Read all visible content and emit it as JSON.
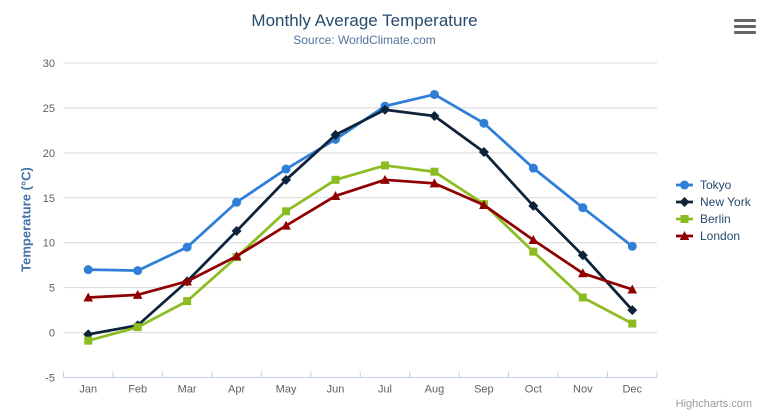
{
  "chart_data": {
    "type": "line",
    "title": "Monthly Average Temperature",
    "subtitle": "Source: WorldClimate.com",
    "xlabel": "",
    "ylabel": "Temperature (°C)",
    "categories": [
      "Jan",
      "Feb",
      "Mar",
      "Apr",
      "May",
      "Jun",
      "Jul",
      "Aug",
      "Sep",
      "Oct",
      "Nov",
      "Dec"
    ],
    "ylim": [
      -5,
      30
    ],
    "yticks": [
      -5,
      0,
      5,
      10,
      15,
      20,
      25,
      30
    ],
    "grid": true,
    "legend_position": "right",
    "series": [
      {
        "name": "Tokyo",
        "color": "#2f7ed8",
        "marker": "circle",
        "values": [
          7.0,
          6.9,
          9.5,
          14.5,
          18.2,
          21.5,
          25.2,
          26.5,
          23.3,
          18.3,
          13.9,
          9.6
        ]
      },
      {
        "name": "New York",
        "color": "#0d233a",
        "marker": "diamond",
        "values": [
          -0.2,
          0.8,
          5.7,
          11.3,
          17.0,
          22.0,
          24.8,
          24.1,
          20.1,
          14.1,
          8.6,
          2.5
        ]
      },
      {
        "name": "Berlin",
        "color": "#8bbc21",
        "marker": "square",
        "values": [
          -0.9,
          0.6,
          3.5,
          8.4,
          13.5,
          17.0,
          18.6,
          17.9,
          14.3,
          9.0,
          3.9,
          1.0
        ]
      },
      {
        "name": "London",
        "color": "#910000",
        "marker": "triangle",
        "values": [
          3.9,
          4.2,
          5.7,
          8.5,
          11.9,
          15.2,
          17.0,
          16.6,
          14.2,
          10.3,
          6.6,
          4.8
        ]
      }
    ],
    "credits": "Highcharts.com",
    "colors": {
      "title": "#274b6d",
      "subtitle": "#4d759e",
      "axis_title": "#4572a7",
      "axis_labels": "#606060",
      "gridline": "#d8d8d8",
      "axis_line": "#c0d0e0",
      "legend_text": "#274b6d",
      "credits_text": "#999999",
      "menu_icon": "#666666"
    }
  }
}
